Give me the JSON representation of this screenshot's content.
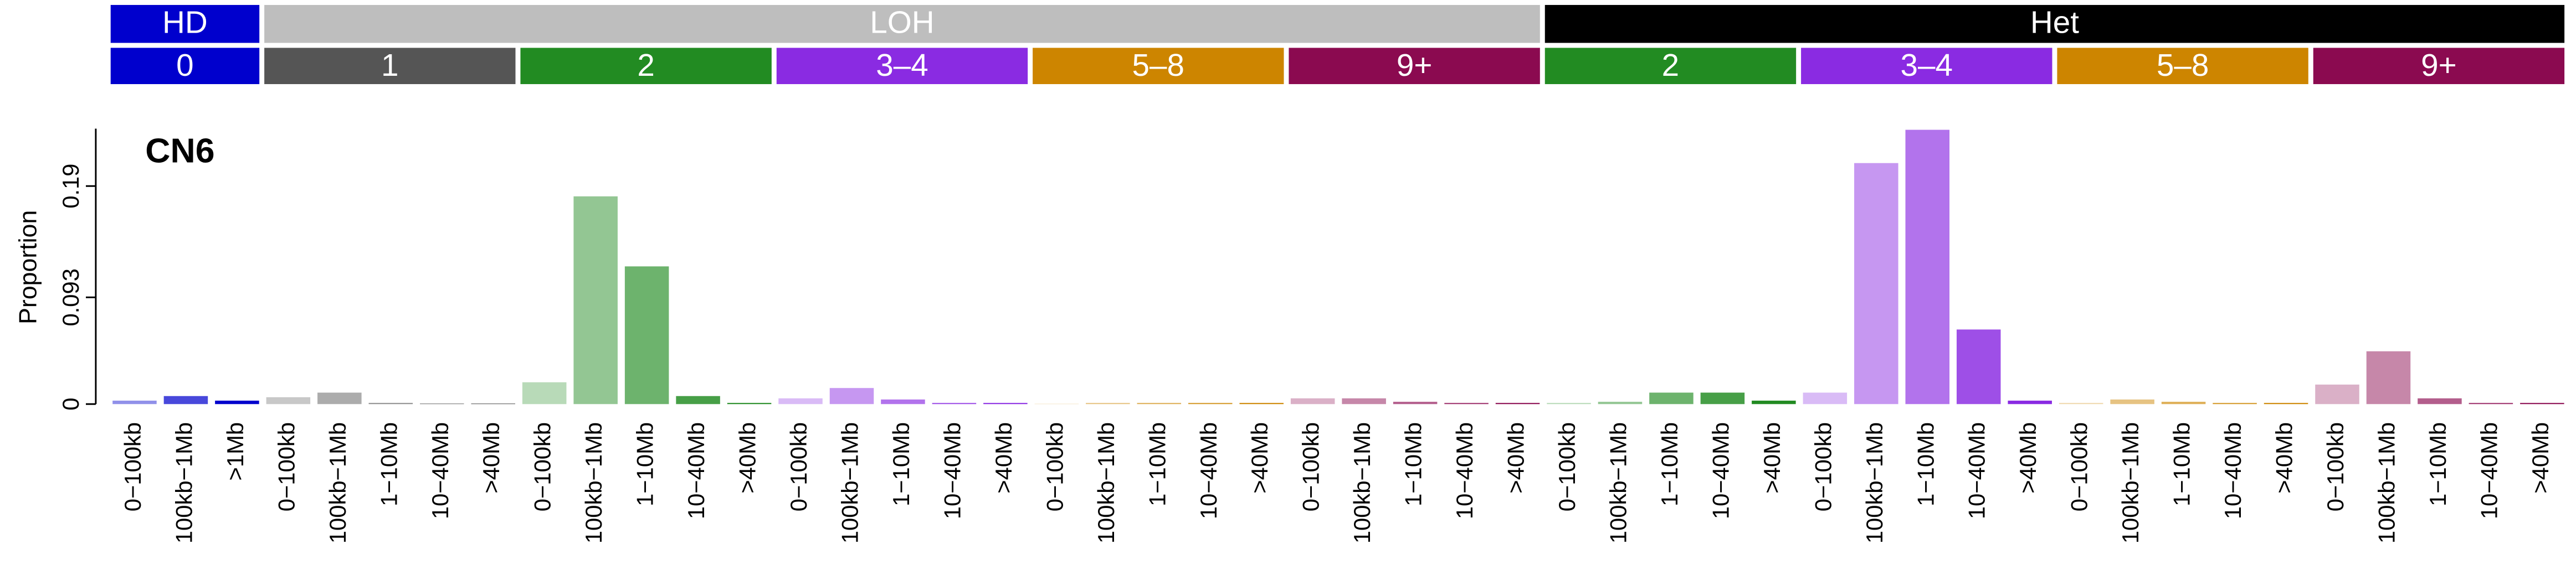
{
  "chart_data": {
    "type": "bar",
    "title": "CN6",
    "y_label": "Proportion",
    "ylim": [
      0,
      0.24
    ],
    "yticks": [
      0,
      0.093,
      0.19
    ],
    "classes": [
      {
        "name": "HD",
        "color": "#0000cd",
        "series": [
          {
            "name": "0",
            "color": "#0000cd",
            "categories": [
              "0−100kb",
              "100kb−1Mb",
              ">1Mb"
            ],
            "values": [
              0.003,
              0.007,
              0.003
            ]
          }
        ]
      },
      {
        "name": "LOH",
        "color": "#bebebe",
        "series": [
          {
            "name": "1",
            "color": "#555555",
            "categories": [
              "0−100kb",
              "100kb−1Mb",
              "1−10Mb",
              "10−40Mb",
              ">40Mb"
            ],
            "values": [
              0.006,
              0.01,
              0.001,
              0.0005,
              0.0005
            ]
          },
          {
            "name": "2",
            "color": "#228b22",
            "categories": [
              "0−100kb",
              "100kb−1Mb",
              "1−10Mb",
              "10−40Mb",
              ">40Mb"
            ],
            "values": [
              0.019,
              0.181,
              0.12,
              0.007,
              0.001
            ]
          },
          {
            "name": "3–4",
            "color": "#8a2be2",
            "categories": [
              "0−100kb",
              "100kb−1Mb",
              "1−10Mb",
              "10−40Mb",
              ">40Mb"
            ],
            "values": [
              0.005,
              0.014,
              0.004,
              0.001,
              0.001
            ]
          },
          {
            "name": "5–8",
            "color": "#cd8500",
            "categories": [
              "0−100kb",
              "100kb−1Mb",
              "1−10Mb",
              "10−40Mb",
              ">40Mb"
            ],
            "values": [
              0.0003,
              0.001,
              0.001,
              0.001,
              0.001
            ]
          },
          {
            "name": "9+",
            "color": "#8b0a50",
            "categories": [
              "0−100kb",
              "100kb−1Mb",
              "1−10Mb",
              "10−40Mb",
              ">40Mb"
            ],
            "values": [
              0.005,
              0.005,
              0.002,
              0.001,
              0.001
            ]
          }
        ]
      },
      {
        "name": "Het",
        "color": "#000000",
        "series": [
          {
            "name": "2",
            "color": "#228b22",
            "categories": [
              "0−100kb",
              "100kb−1Mb",
              "1−10Mb",
              "10−40Mb",
              ">40Mb"
            ],
            "values": [
              0.001,
              0.002,
              0.01,
              0.01,
              0.003
            ]
          },
          {
            "name": "3–4",
            "color": "#8a2be2",
            "categories": [
              "0−100kb",
              "100kb−1Mb",
              "1−10Mb",
              "10−40Mb",
              ">40Mb"
            ],
            "values": [
              0.01,
              0.21,
              0.239,
              0.065,
              0.003
            ]
          },
          {
            "name": "5–8",
            "color": "#cd8500",
            "categories": [
              "0−100kb",
              "100kb−1Mb",
              "1−10Mb",
              "10−40Mb",
              ">40Mb"
            ],
            "values": [
              0.001,
              0.004,
              0.002,
              0.001,
              0.001
            ]
          },
          {
            "name": "9+",
            "color": "#8b0a50",
            "categories": [
              "0−100kb",
              "100kb−1Mb",
              "1−10Mb",
              "10−40Mb",
              ">40Mb"
            ],
            "values": [
              0.017,
              0.046,
              0.005,
              0.001,
              0.001
            ]
          }
        ]
      }
    ]
  }
}
